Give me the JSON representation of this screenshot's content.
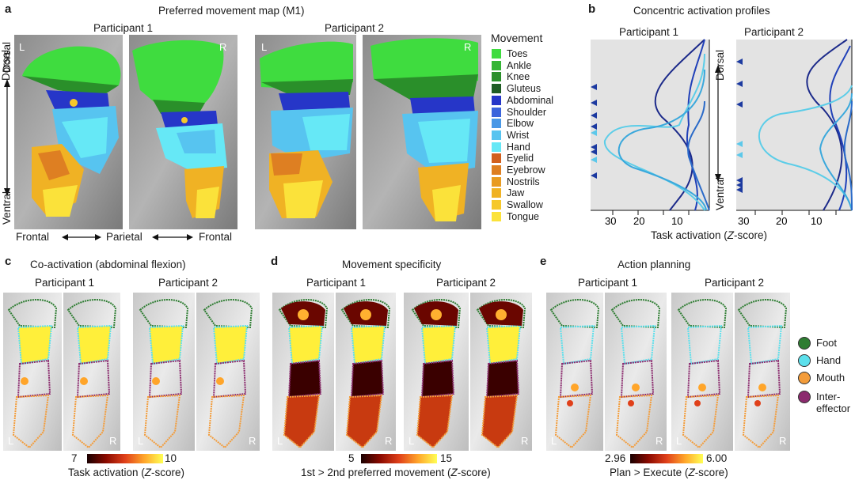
{
  "panel_a": {
    "label": "a",
    "title": "Preferred movement map (M1)",
    "participants": [
      "Participant 1",
      "Participant 2"
    ],
    "hemi_left": "L",
    "hemi_right": "R",
    "dorsal": "Dorsal",
    "ventral": "Ventral",
    "frontal_left": "Frontal",
    "parietal": "Parietal",
    "frontal_right": "Frontal",
    "legend_title": "Movement",
    "legend": [
      {
        "name": "Toes",
        "color": "#3fdc3f"
      },
      {
        "name": "Ankle",
        "color": "#35b535"
      },
      {
        "name": "Knee",
        "color": "#2a8f2a"
      },
      {
        "name": "Gluteus",
        "color": "#1f5c24"
      },
      {
        "name": "Abdominal",
        "color": "#2636c8"
      },
      {
        "name": "Shoulder",
        "color": "#3a64dc"
      },
      {
        "name": "Elbow",
        "color": "#4a98e6"
      },
      {
        "name": "Wrist",
        "color": "#57c4f0"
      },
      {
        "name": "Hand",
        "color": "#66e8f6"
      },
      {
        "name": "Eyelid",
        "color": "#d2601e"
      },
      {
        "name": "Eyebrow",
        "color": "#de7f22"
      },
      {
        "name": "Nostrils",
        "color": "#e89b22"
      },
      {
        "name": "Jaw",
        "color": "#f0b224"
      },
      {
        "name": "Swallow",
        "color": "#f6c82a"
      },
      {
        "name": "Tongue",
        "color": "#fbe23a"
      }
    ]
  },
  "panel_b": {
    "label": "b",
    "title": "Concentric activation profiles",
    "participants": [
      "Participant 1",
      "Participant 2"
    ],
    "dorsal": "Dorsal",
    "ventral": "Ventral",
    "ticks": [
      "30",
      "20",
      "10"
    ],
    "xlabel_prefix": "Task activation (",
    "xlabel_italic": "Z",
    "xlabel_suffix": "-score)"
  },
  "panel_c": {
    "label": "c",
    "title": "Co-activation (abdominal flexion)",
    "participants": [
      "Participant 1",
      "Participant 2"
    ],
    "cbar_min": "7",
    "cbar_max": "10",
    "caption_prefix": "Task activation (",
    "caption_italic": "Z",
    "caption_suffix": "-score)"
  },
  "panel_d": {
    "label": "d",
    "title": "Movement specificity",
    "participants": [
      "Participant 1",
      "Participant 2"
    ],
    "cbar_min": "5",
    "cbar_max": "15",
    "caption_prefix": "1st > 2nd preferred movement (",
    "caption_italic": "Z",
    "caption_suffix": "-score)"
  },
  "panel_e": {
    "label": "e",
    "title": "Action planning",
    "participants": [
      "Participant 1",
      "Participant 2"
    ],
    "cbar_min": "2.96",
    "cbar_max": "6.00",
    "caption_prefix": "Plan > Execute (",
    "caption_italic": "Z",
    "caption_suffix": "-score)"
  },
  "roi_legend": [
    {
      "name": "Foot",
      "color": "#2e7d32"
    },
    {
      "name": "Hand",
      "color": "#5ce0ec"
    },
    {
      "name": "Mouth",
      "color": "#f39c3a"
    },
    {
      "name": "Inter-\neffector",
      "color": "#8b2a6e"
    }
  ],
  "hemi_left": "L",
  "hemi_right": "R"
}
